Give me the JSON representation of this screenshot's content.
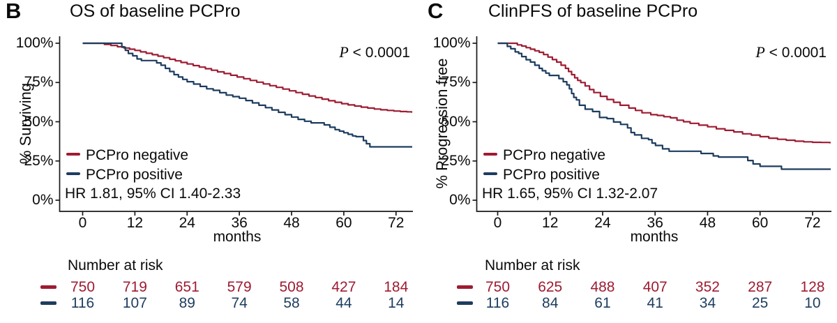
{
  "chart_data": [
    {
      "type": "line",
      "subtype": "kaplan_meier_step",
      "panel_letter": "B",
      "title": "OS of baseline PCPro",
      "xlabel": "months",
      "ylabel": "% Surviving",
      "pvalue_prefix": "P",
      "pvalue_rest": " < 0.0001",
      "hr_label": "HR 1.81, 95% CI 1.40-2.33",
      "x_ticks": [
        0,
        12,
        24,
        36,
        48,
        60,
        72
      ],
      "y_ticks": [
        100,
        75,
        50,
        25,
        0
      ],
      "y_tick_labels": [
        "100%",
        "75%",
        "50%",
        "25%",
        "0%"
      ],
      "xlim_months": [
        0,
        75.6
      ],
      "ylim_percent": [
        0,
        100
      ],
      "grid": false,
      "legend_position": "inside-lower-left",
      "series": [
        {
          "name": "PCPro negative",
          "color": "#9E1B32",
          "step_points": [
            [
              0,
              100
            ],
            [
              3.5,
              100
            ],
            [
              5,
              99.3
            ],
            [
              6.5,
              98.6
            ],
            [
              8,
              97.8
            ],
            [
              9.5,
              97
            ],
            [
              10.8,
              96.2
            ],
            [
              12,
              95.4
            ],
            [
              13.3,
              94.5
            ],
            [
              14.6,
              93.6
            ],
            [
              16,
              92.7
            ],
            [
              17.3,
              91.8
            ],
            [
              18.6,
              90.8
            ],
            [
              20,
              89.8
            ],
            [
              21.3,
              88.8
            ],
            [
              22.6,
              87.8
            ],
            [
              24,
              86.8
            ],
            [
              25.4,
              85.8
            ],
            [
              26.8,
              84.8
            ],
            [
              28.2,
              83.8
            ],
            [
              29.6,
              82.8
            ],
            [
              31,
              81.8
            ],
            [
              32.5,
              80.7
            ],
            [
              34,
              79.6
            ],
            [
              35.5,
              78.5
            ],
            [
              37,
              77.4
            ],
            [
              38.5,
              76.3
            ],
            [
              40,
              75.2
            ],
            [
              41.5,
              74.1
            ],
            [
              43,
              73
            ],
            [
              44.5,
              71.9
            ],
            [
              46,
              70.8
            ],
            [
              47.5,
              69.7
            ],
            [
              49,
              68.6
            ],
            [
              50.5,
              67.5
            ],
            [
              52,
              66.4
            ],
            [
              53.5,
              65.4
            ],
            [
              55,
              64.4
            ],
            [
              56.5,
              63.4
            ],
            [
              58,
              62.4
            ],
            [
              59.5,
              61.5
            ],
            [
              61,
              60.7
            ],
            [
              62.5,
              60
            ],
            [
              64,
              59.3
            ],
            [
              65.5,
              58.7
            ],
            [
              67,
              58.1
            ],
            [
              68.5,
              57.6
            ],
            [
              70,
              57.2
            ],
            [
              71.5,
              56.8
            ],
            [
              73,
              56.5
            ],
            [
              74.5,
              56.3
            ],
            [
              75.6,
              56.2
            ]
          ]
        },
        {
          "name": "PCPro positive",
          "color": "#1D3C5F",
          "step_points": [
            [
              0,
              100
            ],
            [
              8.5,
              100
            ],
            [
              9,
              97.5
            ],
            [
              9.8,
              95.5
            ],
            [
              10.5,
              93.5
            ],
            [
              11.5,
              92
            ],
            [
              12.5,
              90
            ],
            [
              13.5,
              89
            ],
            [
              16.5,
              89
            ],
            [
              17,
              87.5
            ],
            [
              18,
              86
            ],
            [
              19,
              84
            ],
            [
              20,
              82
            ],
            [
              21,
              80
            ],
            [
              22,
              78.5
            ],
            [
              23,
              77
            ],
            [
              24,
              75.5
            ],
            [
              25.5,
              74
            ],
            [
              27,
              72.5
            ],
            [
              28.5,
              71
            ],
            [
              30,
              70
            ],
            [
              31.5,
              68.5
            ],
            [
              33,
              67
            ],
            [
              34.5,
              66
            ],
            [
              36,
              65
            ],
            [
              37.5,
              63.5
            ],
            [
              39,
              62
            ],
            [
              40.5,
              60.5
            ],
            [
              42,
              59
            ],
            [
              43.5,
              57.5
            ],
            [
              45,
              56
            ],
            [
              46.5,
              54.5
            ],
            [
              48,
              53
            ],
            [
              49.5,
              51.5
            ],
            [
              51,
              50.3
            ],
            [
              52.5,
              49.3
            ],
            [
              55,
              49.3
            ],
            [
              55.5,
              48
            ],
            [
              56.8,
              46.5
            ],
            [
              58,
              45
            ],
            [
              59,
              44
            ],
            [
              60,
              43
            ],
            [
              61,
              42
            ],
            [
              62,
              41
            ],
            [
              62.8,
              40.5
            ],
            [
              64.2,
              40.5
            ],
            [
              64.5,
              38
            ],
            [
              65.2,
              36
            ],
            [
              66,
              34
            ],
            [
              75.6,
              34
            ]
          ]
        }
      ],
      "number_at_risk": {
        "header": "Number at risk",
        "times": [
          0,
          12,
          24,
          36,
          48,
          60,
          72
        ],
        "rows": [
          {
            "name": "PCPro negative",
            "color": "#9E1B32",
            "values": [
              "750",
              "719",
              "651",
              "579",
              "508",
              "427",
              "184"
            ]
          },
          {
            "name": "PCPro positive",
            "color": "#1D3C5F",
            "values": [
              "116",
              "107",
              "89",
              "74",
              "58",
              "44",
              "14"
            ]
          }
        ]
      }
    },
    {
      "type": "line",
      "subtype": "kaplan_meier_step",
      "panel_letter": "C",
      "title": "ClinPFS of baseline PCPro",
      "xlabel": "months",
      "ylabel": "% Progression free",
      "pvalue_prefix": "P",
      "pvalue_rest": " < 0.0001",
      "hr_label": "HR 1.65, 95% CI 1.32-2.07",
      "x_ticks": [
        0,
        12,
        24,
        36,
        48,
        60,
        72
      ],
      "y_ticks": [
        100,
        75,
        50,
        25,
        0
      ],
      "y_tick_labels": [
        "100%",
        "75%",
        "50%",
        "25%",
        "0%"
      ],
      "xlim_months": [
        0,
        75.8
      ],
      "ylim_percent": [
        0,
        100
      ],
      "grid": false,
      "legend_position": "inside-lower-left",
      "series": [
        {
          "name": "PCPro negative",
          "color": "#9E1B32",
          "step_points": [
            [
              0,
              100
            ],
            [
              3,
              100
            ],
            [
              4.5,
              99
            ],
            [
              5.5,
              98.2
            ],
            [
              6.5,
              97.2
            ],
            [
              7.5,
              96.2
            ],
            [
              8.5,
              95.2
            ],
            [
              9.5,
              94.2
            ],
            [
              10.5,
              92.8
            ],
            [
              11.5,
              91.2
            ],
            [
              12.5,
              89.6
            ],
            [
              13.5,
              88
            ],
            [
              14.5,
              86
            ],
            [
              15.5,
              84
            ],
            [
              16.2,
              82
            ],
            [
              16.9,
              80
            ],
            [
              17.6,
              78
            ],
            [
              18.3,
              76.3
            ],
            [
              19,
              75
            ],
            [
              20,
              72.8
            ],
            [
              21,
              70.5
            ],
            [
              22,
              68.6
            ],
            [
              23.5,
              66.2
            ],
            [
              25,
              64.2
            ],
            [
              26.5,
              62.4
            ],
            [
              28,
              60.5
            ],
            [
              30,
              58.7
            ],
            [
              31.5,
              57.2
            ],
            [
              33,
              55.7
            ],
            [
              35,
              54.5
            ],
            [
              36.5,
              54
            ],
            [
              38,
              53.2
            ],
            [
              39.5,
              52.5
            ],
            [
              41,
              51
            ],
            [
              42.5,
              50
            ],
            [
              44,
              49
            ],
            [
              46,
              47.8
            ],
            [
              48,
              46.8
            ],
            [
              50,
              45.5
            ],
            [
              52,
              44.5
            ],
            [
              54,
              43.5
            ],
            [
              56,
              42.3
            ],
            [
              58,
              41.5
            ],
            [
              60,
              40.5
            ],
            [
              62,
              39.5
            ],
            [
              64,
              38.8
            ],
            [
              66,
              38.2
            ],
            [
              68,
              37.6
            ],
            [
              70,
              37.2
            ],
            [
              72,
              36.9
            ],
            [
              74,
              36.8
            ],
            [
              75.8,
              36.7
            ]
          ]
        },
        {
          "name": "PCPro positive",
          "color": "#1D3C5F",
          "step_points": [
            [
              0,
              100
            ],
            [
              1.5,
              100
            ],
            [
              2.2,
              98
            ],
            [
              3,
              96.5
            ],
            [
              4,
              94.5
            ],
            [
              4.8,
              93.5
            ],
            [
              5.5,
              91.5
            ],
            [
              6.5,
              89.5
            ],
            [
              7.5,
              88
            ],
            [
              8.5,
              86
            ],
            [
              9.5,
              84
            ],
            [
              10.2,
              82.5
            ],
            [
              11,
              81
            ],
            [
              11.8,
              79.5
            ],
            [
              13.5,
              79.5
            ],
            [
              14,
              77.5
            ],
            [
              15,
              75.5
            ],
            [
              15.8,
              73.5
            ],
            [
              16.4,
              71
            ],
            [
              16.9,
              68
            ],
            [
              17.4,
              65.5
            ],
            [
              18,
              63.9
            ],
            [
              18.7,
              60.5
            ],
            [
              20,
              58
            ],
            [
              21.7,
              56.5
            ],
            [
              23.3,
              52.7
            ],
            [
              25,
              52
            ],
            [
              26.5,
              49.8
            ],
            [
              28.1,
              48.3
            ],
            [
              29.7,
              46.1
            ],
            [
              30.5,
              43.1
            ],
            [
              31.3,
              41.6
            ],
            [
              32.9,
              39.4
            ],
            [
              34.5,
              38.6
            ],
            [
              35.3,
              36.4
            ],
            [
              36.1,
              34.9
            ],
            [
              37.7,
              32.7
            ],
            [
              39.2,
              31.2
            ],
            [
              45.5,
              31.2
            ],
            [
              46.5,
              29.8
            ],
            [
              49.3,
              28.2
            ],
            [
              50.5,
              27.5
            ],
            [
              56.8,
              27.5
            ],
            [
              57.2,
              25.3
            ],
            [
              58.4,
              23.1
            ],
            [
              60,
              21.6
            ],
            [
              64.4,
              21.6
            ],
            [
              64.9,
              19.8
            ],
            [
              75.8,
              19.8
            ]
          ]
        }
      ],
      "number_at_risk": {
        "header": "Number at risk",
        "times": [
          0,
          12,
          24,
          36,
          48,
          60,
          72
        ],
        "rows": [
          {
            "name": "PCPro negative",
            "color": "#9E1B32",
            "values": [
              "750",
              "625",
              "488",
              "407",
              "352",
              "287",
              "128"
            ]
          },
          {
            "name": "PCPro positive",
            "color": "#1D3C5F",
            "values": [
              "116",
              "84",
              "61",
              "41",
              "34",
              "25",
              "10"
            ]
          }
        ]
      }
    }
  ],
  "colors": {
    "negative_line": "#9E1B32",
    "positive_line": "#1D3C5F",
    "axis": "#1a1a1a",
    "text": "#0a0a0a",
    "background": "#FFFFFF"
  }
}
